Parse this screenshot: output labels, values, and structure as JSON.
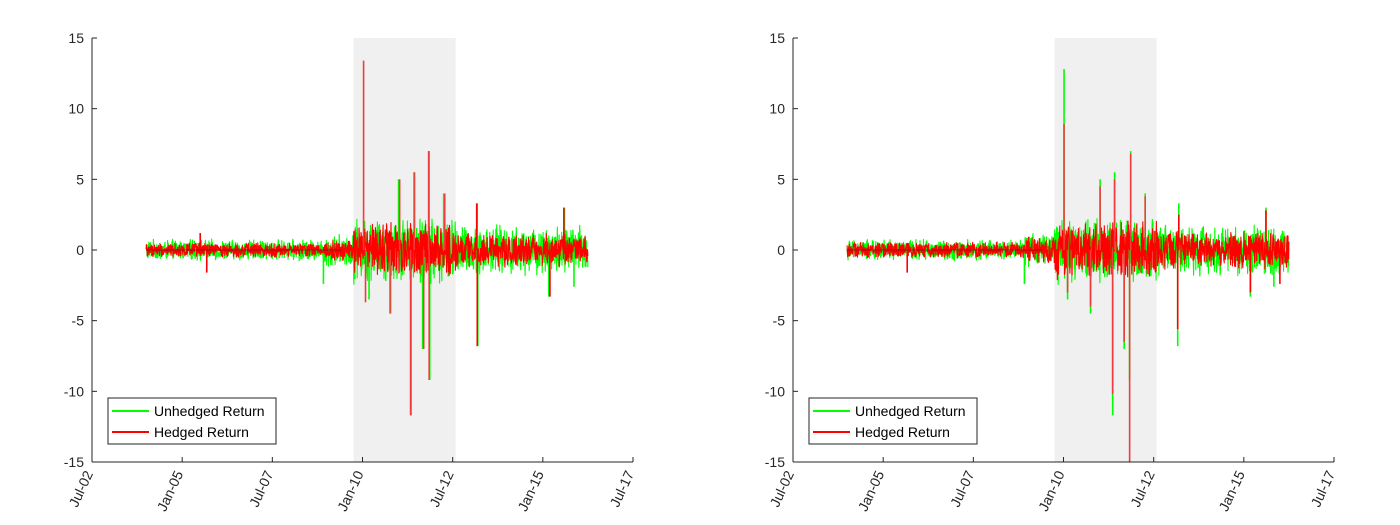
{
  "colors": {
    "unhedged": "#00ff00",
    "hedged": "#ff0000",
    "hedged_in_band": "#f03c3c",
    "band": "#f0f0f0",
    "axis": "#262626"
  },
  "chart_data": [
    {
      "type": "line",
      "title": "",
      "xlabel": "",
      "ylabel": "",
      "xlim": [
        "2002-07",
        "2017-07"
      ],
      "ylim": [
        -15,
        15
      ],
      "x_ticks": [
        "Jul-02",
        "Jan-05",
        "Jul-07",
        "Jan-10",
        "Jul-12",
        "Jan-15",
        "Jul-17"
      ],
      "y_ticks": [
        "15",
        "10",
        "5",
        "0",
        "-5",
        "-10",
        "-15"
      ],
      "grid": false,
      "legend_position": "bottom-left",
      "shaded_period": [
        "2009-10",
        "2012-08"
      ],
      "series": [
        {
          "name": "Unhedged Return",
          "color": "#00ff00",
          "x_range": [
            "2004-01",
            "2016-04"
          ],
          "base_amplitude": 0.6,
          "spikes": [
            {
              "date": "2008-12",
              "value": -2.4
            },
            {
              "date": "2010-03",
              "value": -3.5
            },
            {
              "date": "2010-10",
              "value": -4.5
            },
            {
              "date": "2011-01",
              "value": 5.0
            },
            {
              "date": "2011-05",
              "value": -11.7
            },
            {
              "date": "2011-06",
              "value": 5.5
            },
            {
              "date": "2011-09",
              "value": -7.0
            },
            {
              "date": "2011-11",
              "value": 7.0
            },
            {
              "date": "2011-11",
              "value": -9.2
            },
            {
              "date": "2012-04",
              "value": 4.0
            },
            {
              "date": "2013-03",
              "value": 3.3
            },
            {
              "date": "2013-03",
              "value": -6.8
            },
            {
              "date": "2015-03",
              "value": -3.3
            },
            {
              "date": "2015-08",
              "value": 3.0
            },
            {
              "date": "2015-11",
              "value": -2.6
            }
          ]
        },
        {
          "name": "Hedged Return",
          "color": "#ff0000",
          "x_range": [
            "2004-01",
            "2016-04"
          ],
          "base_amplitude": 0.4,
          "spikes": [
            {
              "date": "2005-07",
              "value": 1.2
            },
            {
              "date": "2005-09",
              "value": -1.6
            },
            {
              "date": "2010-01",
              "value": 13.4
            },
            {
              "date": "2010-02",
              "value": -3.7
            },
            {
              "date": "2010-10",
              "value": -4.5
            },
            {
              "date": "2011-01",
              "value": 5.0
            },
            {
              "date": "2011-05",
              "value": -11.7
            },
            {
              "date": "2011-06",
              "value": 5.5
            },
            {
              "date": "2011-09",
              "value": -7.0
            },
            {
              "date": "2011-11",
              "value": 7.0
            },
            {
              "date": "2011-11",
              "value": -9.2
            },
            {
              "date": "2012-04",
              "value": 4.0
            },
            {
              "date": "2013-03",
              "value": 3.3
            },
            {
              "date": "2013-03",
              "value": -6.8
            },
            {
              "date": "2015-03",
              "value": -3.3
            },
            {
              "date": "2015-08",
              "value": 3.0
            }
          ]
        }
      ]
    },
    {
      "type": "line",
      "title": "",
      "xlabel": "",
      "ylabel": "",
      "xlim": [
        "2002-07",
        "2017-07"
      ],
      "ylim": [
        -15,
        15
      ],
      "x_ticks": [
        "Jul-02",
        "Jan-05",
        "Jul-07",
        "Jan-10",
        "Jul-12",
        "Jan-15",
        "Jul-17"
      ],
      "y_ticks": [
        "15",
        "10",
        "5",
        "0",
        "-5",
        "-10",
        "-15"
      ],
      "grid": false,
      "legend_position": "bottom-left",
      "shaded_period": [
        "2009-10",
        "2012-08"
      ],
      "series": [
        {
          "name": "Unhedged Return",
          "color": "#00ff00",
          "x_range": [
            "2004-01",
            "2016-04"
          ],
          "base_amplitude": 0.6,
          "spikes": [
            {
              "date": "2008-12",
              "value": -2.4
            },
            {
              "date": "2010-01",
              "value": 12.8
            },
            {
              "date": "2010-02",
              "value": -3.5
            },
            {
              "date": "2010-10",
              "value": -4.5
            },
            {
              "date": "2011-01",
              "value": 5.0
            },
            {
              "date": "2011-05",
              "value": -11.7
            },
            {
              "date": "2011-06",
              "value": 5.5
            },
            {
              "date": "2011-09",
              "value": -7.0
            },
            {
              "date": "2011-11",
              "value": 7.0
            },
            {
              "date": "2011-11",
              "value": -9.2
            },
            {
              "date": "2012-04",
              "value": 4.0
            },
            {
              "date": "2013-03",
              "value": 3.3
            },
            {
              "date": "2013-03",
              "value": -6.8
            },
            {
              "date": "2015-03",
              "value": -3.3
            },
            {
              "date": "2015-08",
              "value": 3.0
            },
            {
              "date": "2015-11",
              "value": -2.6
            }
          ]
        },
        {
          "name": "Hedged Return",
          "color": "#ff0000",
          "x_range": [
            "2004-01",
            "2016-04"
          ],
          "base_amplitude": 0.45,
          "spikes": [
            {
              "date": "2005-09",
              "value": -1.6
            },
            {
              "date": "2010-01",
              "value": 8.9
            },
            {
              "date": "2010-02",
              "value": -3.0
            },
            {
              "date": "2010-10",
              "value": -4.0
            },
            {
              "date": "2011-01",
              "value": 4.5
            },
            {
              "date": "2011-05",
              "value": -10.2
            },
            {
              "date": "2011-06",
              "value": 5.0
            },
            {
              "date": "2011-09",
              "value": -6.5
            },
            {
              "date": "2011-11",
              "value": 6.8
            },
            {
              "date": "2011-11",
              "value": -15.0
            },
            {
              "date": "2012-04",
              "value": 3.8
            },
            {
              "date": "2013-03",
              "value": 2.5
            },
            {
              "date": "2013-03",
              "value": -5.6
            },
            {
              "date": "2015-03",
              "value": -3.0
            },
            {
              "date": "2015-08",
              "value": 2.8
            },
            {
              "date": "2016-01",
              "value": -2.4
            }
          ]
        }
      ]
    }
  ]
}
